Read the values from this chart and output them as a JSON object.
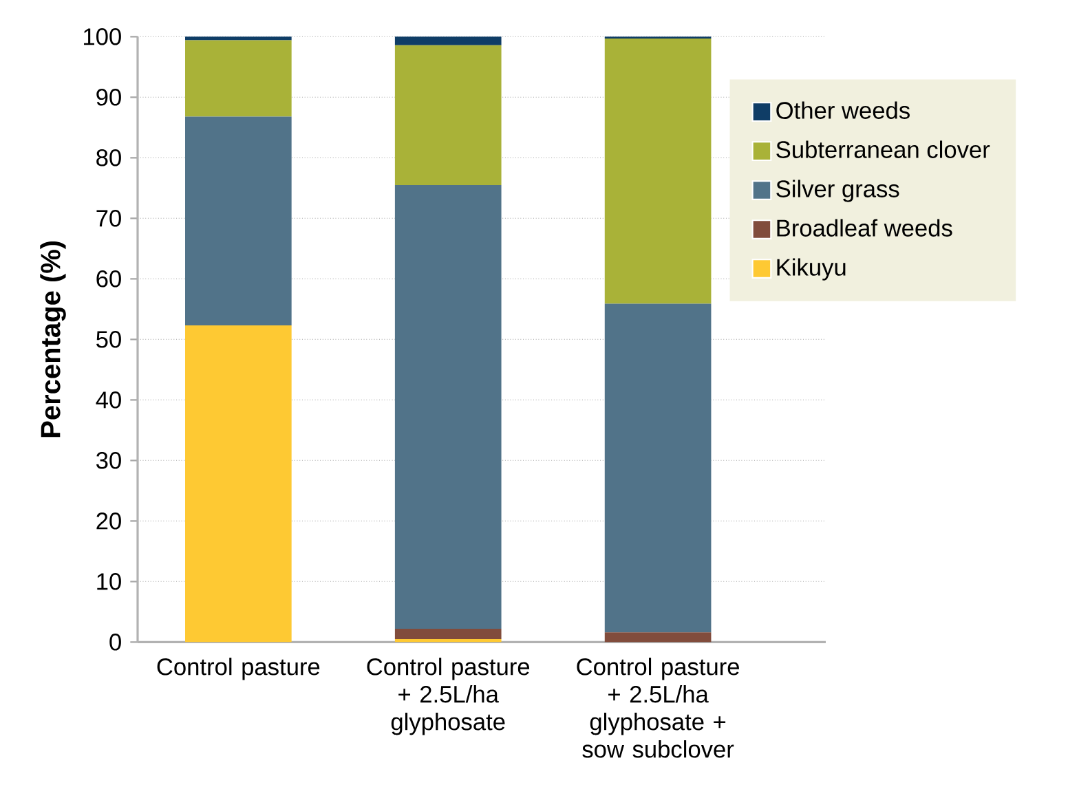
{
  "chart_data": {
    "type": "bar",
    "stacked": true,
    "ylabel": "Percentage (%)",
    "categories": [
      "Control pasture",
      "Control pasture + 2.5L/ha glyphosate",
      "Control pasture + 2.5L/ha glyphosate + sow subclover"
    ],
    "series": [
      {
        "name": "Kikuyu",
        "color": "#fec933",
        "values": [
          52.3,
          0.5,
          0
        ]
      },
      {
        "name": "Broadleaf weeds",
        "color": "#814c3c",
        "values": [
          0,
          1.7,
          1.6
        ]
      },
      {
        "name": "Silver grass",
        "color": "#517389",
        "values": [
          34.5,
          73.3,
          54.3
        ]
      },
      {
        "name": "Subterranean clover",
        "color": "#a9b238",
        "values": [
          12.6,
          23.1,
          43.8
        ]
      },
      {
        "name": "Other weeds",
        "color": "#0f3d66",
        "values": [
          0.6,
          1.4,
          0.3
        ]
      }
    ],
    "ylim": [
      0,
      100
    ],
    "yticks": [
      0,
      10,
      20,
      30,
      40,
      50,
      60,
      70,
      80,
      90,
      100
    ],
    "grid": "y",
    "legend": "right"
  }
}
